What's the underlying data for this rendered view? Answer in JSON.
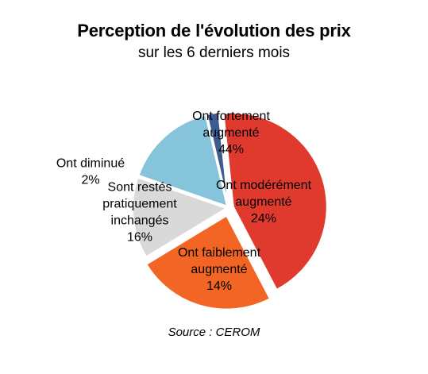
{
  "chart_data": {
    "type": "pie",
    "title": "Perception de l'évolution des prix",
    "subtitle": "sur les 6 derniers mois",
    "source": "Source : CEROM",
    "slices": [
      {
        "label_lines": [
          "Ont fortement",
          "augmenté"
        ],
        "pct": "44%",
        "value": 44,
        "color": "#e03a2f"
      },
      {
        "label_lines": [
          "Ont modérément",
          "augmenté"
        ],
        "pct": "24%",
        "value": 24,
        "color": "#f26524"
      },
      {
        "label_lines": [
          "Ont faiblement",
          "augmenté"
        ],
        "pct": "14%",
        "value": 14,
        "color": "#d9d9d9"
      },
      {
        "label_lines": [
          "Sont restés",
          "pratiquement",
          "inchangés"
        ],
        "pct": "16%",
        "value": 16,
        "color": "#86c4dc"
      },
      {
        "label_lines": [
          "Ont diminué"
        ],
        "pct": "2%",
        "value": 2,
        "color": "#3c5c8f"
      }
    ],
    "start_angle_deg": -6,
    "legend": "none"
  }
}
